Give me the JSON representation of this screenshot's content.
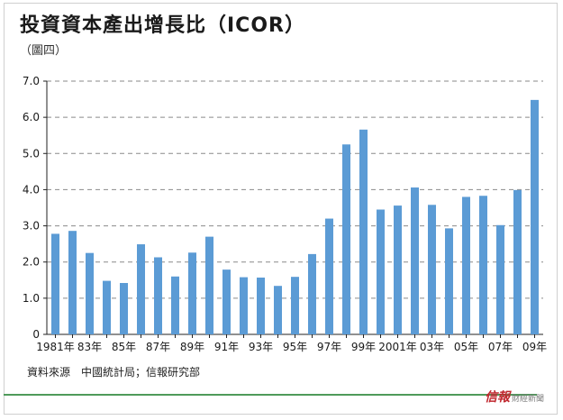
{
  "chart_data": {
    "type": "bar",
    "title": "投資資本產出增長比（ICOR）",
    "subtitle": "（圖四）",
    "source": "資料來源　中國統計局；信報研究部",
    "ylim": [
      0,
      7
    ],
    "yticks": [
      "0",
      "1.0",
      "2.0",
      "3.0",
      "4.0",
      "5.0",
      "6.0",
      "7.0"
    ],
    "grid": true,
    "bar_color": "#5b9bd5",
    "categories": [
      "1981",
      "1982",
      "1983",
      "1984",
      "1985",
      "1986",
      "1987",
      "1988",
      "1989",
      "1990",
      "1991",
      "1992",
      "1993",
      "1994",
      "1995",
      "1996",
      "1997",
      "1998",
      "1999",
      "2000",
      "2001",
      "2002",
      "2003",
      "2004",
      "2005",
      "2006",
      "2007",
      "2008",
      "2009"
    ],
    "values": [
      2.78,
      2.86,
      2.25,
      1.48,
      1.42,
      2.49,
      2.13,
      1.6,
      2.26,
      2.7,
      1.79,
      1.58,
      1.57,
      1.34,
      1.59,
      2.22,
      3.2,
      5.25,
      5.66,
      3.45,
      3.56,
      4.06,
      3.58,
      2.93,
      3.8,
      3.83,
      3.02,
      3.99,
      6.48
    ],
    "xtick_labels": [
      {
        "index": 0,
        "label": "1981年"
      },
      {
        "index": 2,
        "label": "83年"
      },
      {
        "index": 4,
        "label": "85年"
      },
      {
        "index": 6,
        "label": "87年"
      },
      {
        "index": 8,
        "label": "89年"
      },
      {
        "index": 10,
        "label": "91年"
      },
      {
        "index": 12,
        "label": "93年"
      },
      {
        "index": 14,
        "label": "95年"
      },
      {
        "index": 16,
        "label": "97年"
      },
      {
        "index": 18,
        "label": "99年"
      },
      {
        "index": 20,
        "label": "2001年"
      },
      {
        "index": 22,
        "label": "03年"
      },
      {
        "index": 24,
        "label": "05年"
      },
      {
        "index": 26,
        "label": "07年"
      },
      {
        "index": 28,
        "label": "09年"
      }
    ]
  },
  "brand": {
    "main": "信報",
    "sub": "財經新聞"
  }
}
